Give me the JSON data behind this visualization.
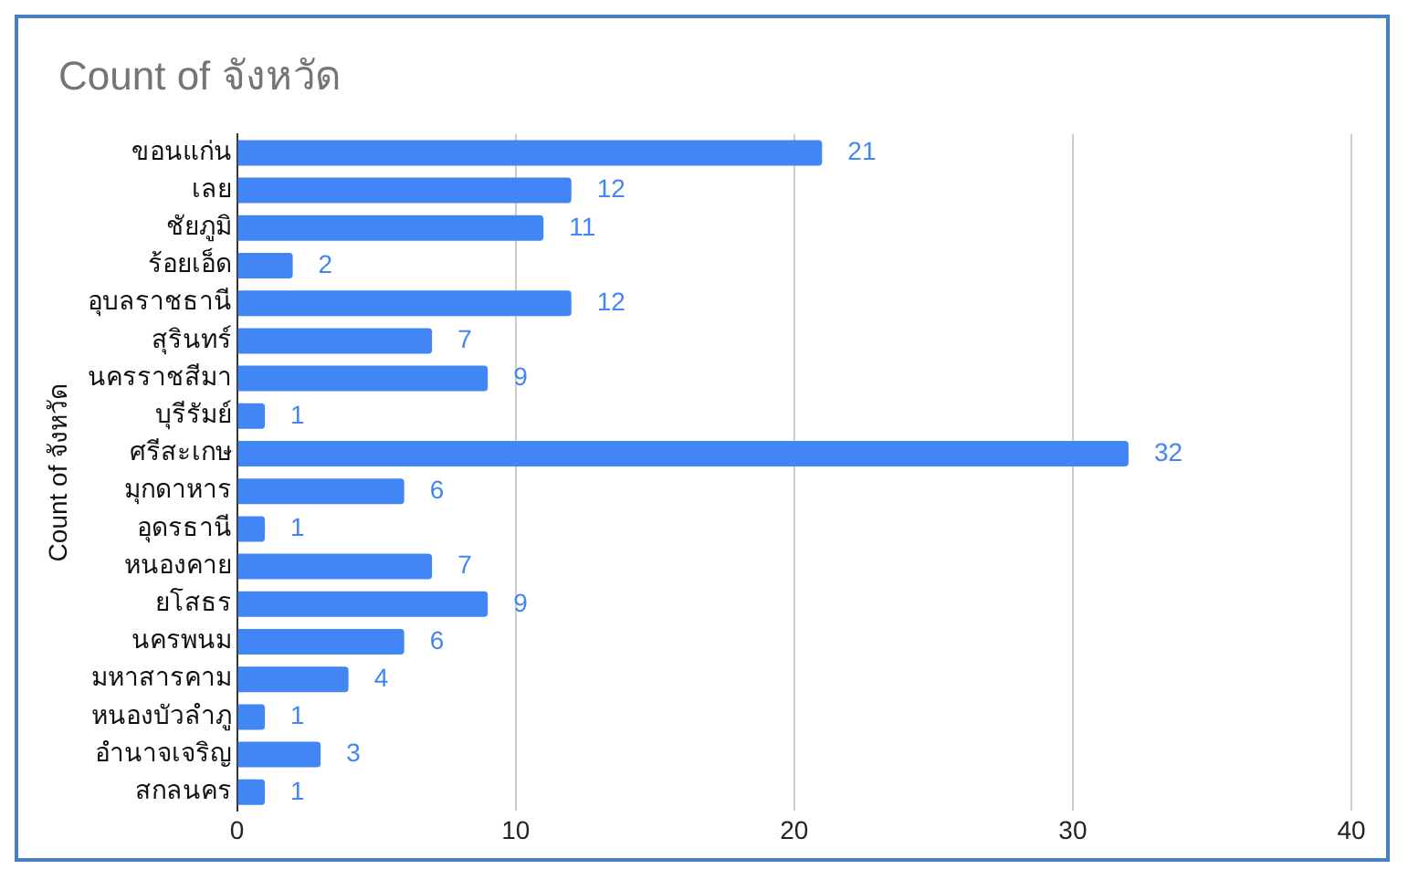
{
  "chart_data": {
    "type": "bar",
    "orientation": "horizontal",
    "title": "Count of จังหวัด",
    "ylabel": "Count of จังหวัด",
    "categories": [
      "ขอนแก่น",
      "เลย",
      "ชัยภูมิ",
      "ร้อยเอ็ด",
      "อุบลราชธานี",
      "สุรินทร์",
      "นครราชสีมา",
      "บุรีรัมย์",
      "ศรีสะเกษ",
      "มุกดาหาร",
      "อุดรธานี",
      "หนองคาย",
      "ยโสธร",
      "นครพนม",
      "มหาสารคาม",
      "หนองบัวลำภู",
      "อำนาจเจริญ",
      "สกลนคร"
    ],
    "values": [
      21,
      12,
      11,
      2,
      12,
      7,
      9,
      1,
      32,
      6,
      1,
      7,
      9,
      6,
      4,
      1,
      3,
      1
    ],
    "color": "#4285f4",
    "xlim": [
      0,
      40
    ],
    "xticks": [
      0,
      10,
      20,
      30,
      40
    ],
    "grid": "x",
    "legend": false,
    "data_labels": true
  }
}
